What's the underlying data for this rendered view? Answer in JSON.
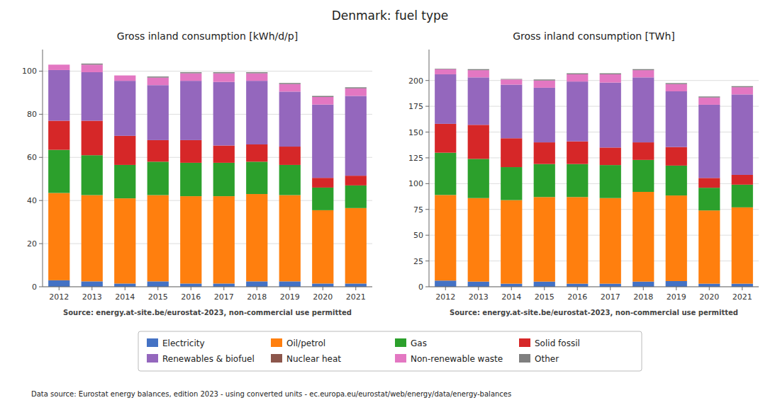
{
  "title": "Denmark: fuel type",
  "annotations": [
    "Data source: Eurostat energy balances, edition 2023 - using converted units - ec.europa.eu/eurostat/web/energy/data/energy-balances"
  ],
  "chart_data": [
    {
      "type": "bar",
      "stacked": true,
      "grid": true,
      "legend": "bottom",
      "title": "Gross inland consumption [kWh/d/p]",
      "annotations": [
        "Source: energy.at-site.be/eurostat-2023, non-commercial use permitted"
      ],
      "categories": [
        2012,
        2013,
        2014,
        2015,
        2016,
        2017,
        2018,
        2019,
        2020,
        2021
      ],
      "ylim": [
        0,
        110
      ],
      "yticks": [
        0,
        20,
        40,
        60,
        80,
        100
      ],
      "series": [
        {
          "name": "Electricity",
          "color": "#4472c4",
          "values": [
            3.0,
            2.5,
            1.5,
            2.5,
            1.5,
            1.5,
            2.5,
            2.5,
            1.5,
            1.5
          ]
        },
        {
          "name": "Oil/petrol",
          "color": "#ff7f0e",
          "values": [
            40.5,
            40.0,
            39.5,
            40.0,
            40.5,
            40.5,
            40.5,
            40.0,
            34.0,
            35.0
          ]
        },
        {
          "name": "Gas",
          "color": "#2ca02c",
          "values": [
            20.0,
            18.5,
            15.5,
            15.5,
            15.5,
            15.5,
            15.0,
            14.0,
            10.5,
            10.5
          ]
        },
        {
          "name": "Solid fossil",
          "color": "#d62728",
          "values": [
            13.5,
            16.0,
            13.5,
            10.0,
            10.5,
            8.0,
            8.0,
            8.5,
            4.5,
            4.5
          ]
        },
        {
          "name": "Renewables & biofuel",
          "color": "#9467bd",
          "values": [
            23.5,
            22.5,
            25.5,
            25.5,
            27.5,
            29.5,
            29.5,
            25.5,
            34.0,
            37.0
          ]
        },
        {
          "name": "Nuclear heat",
          "color": "#8c564b",
          "values": [
            0.0,
            0.0,
            0.0,
            0.0,
            0.0,
            0.0,
            0.0,
            0.0,
            0.0,
            0.0
          ]
        },
        {
          "name": "Non-renewable waste",
          "color": "#e377c2",
          "values": [
            2.5,
            3.5,
            2.5,
            3.5,
            3.5,
            4.0,
            3.5,
            3.5,
            3.5,
            3.5
          ]
        },
        {
          "name": "Other",
          "color": "#7f7f7f",
          "values": [
            0.0,
            0.5,
            0.0,
            0.5,
            0.5,
            0.5,
            0.5,
            0.5,
            0.5,
            0.5
          ]
        }
      ]
    },
    {
      "type": "bar",
      "stacked": true,
      "grid": true,
      "title": "Gross inland consumption [TWh]",
      "annotations": [
        "Source: energy.at-site.be/eurostat-2023, non-commercial use permitted"
      ],
      "categories": [
        2012,
        2013,
        2014,
        2015,
        2016,
        2017,
        2018,
        2019,
        2020,
        2021
      ],
      "ylim": [
        0,
        230
      ],
      "yticks": [
        0,
        25,
        50,
        75,
        100,
        125,
        150,
        175,
        200
      ],
      "series": [
        {
          "name": "Electricity",
          "color": "#4472c4",
          "values": [
            6.0,
            5.0,
            3.0,
            5.0,
            3.0,
            3.0,
            5.0,
            5.5,
            3.0,
            3.0
          ]
        },
        {
          "name": "Oil/petrol",
          "color": "#ff7f0e",
          "values": [
            83.0,
            81.0,
            81.0,
            82.0,
            84.0,
            83.0,
            87.0,
            83.0,
            71.0,
            74.0
          ]
        },
        {
          "name": "Gas",
          "color": "#2ca02c",
          "values": [
            41.0,
            38.0,
            32.0,
            32.0,
            32.0,
            32.0,
            31.0,
            29.0,
            22.0,
            22.0
          ]
        },
        {
          "name": "Solid fossil",
          "color": "#d62728",
          "values": [
            28.0,
            33.0,
            28.0,
            21.0,
            22.0,
            17.0,
            17.0,
            18.0,
            9.5,
            9.5
          ]
        },
        {
          "name": "Renewables & biofuel",
          "color": "#9467bd",
          "values": [
            48.0,
            46.0,
            52.0,
            53.0,
            58.0,
            63.0,
            63.0,
            54.0,
            71.0,
            78.0
          ]
        },
        {
          "name": "Nuclear heat",
          "color": "#8c564b",
          "values": [
            0.0,
            0.0,
            0.0,
            0.0,
            0.0,
            0.0,
            0.0,
            0.0,
            0.0,
            0.0
          ]
        },
        {
          "name": "Non-renewable waste",
          "color": "#e377c2",
          "values": [
            5.0,
            7.0,
            5.0,
            7.0,
            7.0,
            8.0,
            7.0,
            7.0,
            7.0,
            7.0
          ]
        },
        {
          "name": "Other",
          "color": "#7f7f7f",
          "values": [
            0.5,
            1.0,
            0.5,
            1.0,
            1.0,
            1.0,
            1.0,
            1.0,
            1.0,
            1.0
          ]
        }
      ]
    }
  ]
}
